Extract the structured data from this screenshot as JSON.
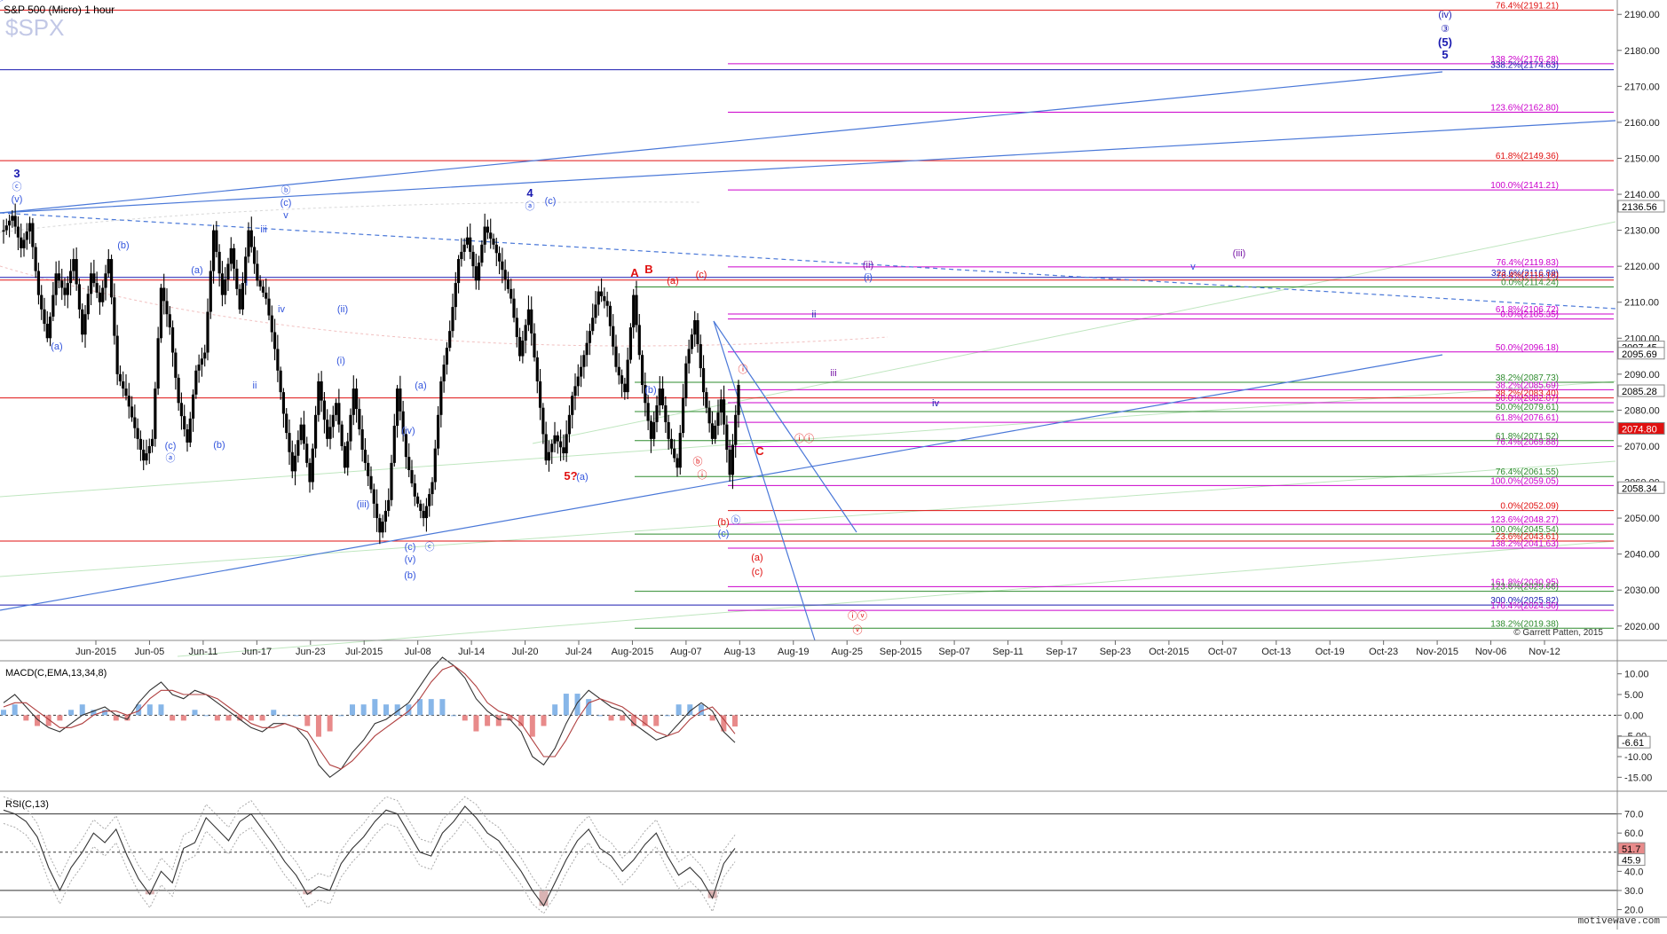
{
  "header": {
    "title": "S&P 500 (Micro)   1 hour",
    "symbol": "$SPX",
    "watermark": "motivewave.com",
    "copyright": "© Garrett Patten, 2015"
  },
  "colors": {
    "candle": "#000000",
    "blue_line": "#4a78d8",
    "red_level": "#e01010",
    "green_level": "#2e8b2e",
    "magenta_level": "#cc00cc",
    "navy_level": "#1a1ab0",
    "macd_pos": "#87b6e8",
    "macd_neg": "#e88a8a"
  },
  "chart_data": [
    {
      "type": "candlestick",
      "title": "S&P 500 (Micro)   1 hour",
      "x_ticks": [
        "Jun-2015",
        "Jun-05",
        "Jun-11",
        "Jun-17",
        "Jun-23",
        "Jul-2015",
        "Jul-08",
        "Jul-14",
        "Jul-20",
        "Jul-24",
        "Aug-2015",
        "Aug-07",
        "Aug-13",
        "Aug-19",
        "Aug-25",
        "Sep-2015",
        "Sep-07",
        "Sep-11",
        "Sep-17",
        "Sep-23",
        "Oct-2015",
        "Oct-07",
        "Oct-13",
        "Oct-19",
        "Oct-23",
        "Nov-2015",
        "Nov-06",
        "Nov-12"
      ],
      "y_ticks": [
        2020,
        2030,
        2040,
        2050,
        2060,
        2070,
        2080,
        2090,
        2100,
        2110,
        2120,
        2130,
        2140,
        2150,
        2160,
        2170,
        2180,
        2190
      ],
      "ylim": [
        2016,
        2194
      ],
      "price_anchors": [
        2130,
        2134,
        2125,
        2132,
        2112,
        2100,
        2118,
        2112,
        2122,
        2101,
        2118,
        2110,
        2122,
        2090,
        2084,
        2075,
        2066,
        2072,
        2114,
        2103,
        2082,
        2071,
        2091,
        2096,
        2130,
        2112,
        2125,
        2108,
        2130,
        2116,
        2111,
        2097,
        2079,
        2063,
        2076,
        2060,
        2088,
        2072,
        2082,
        2064,
        2086,
        2069,
        2058,
        2046,
        2055,
        2086,
        2067,
        2056,
        2050,
        2060,
        2088,
        2102,
        2122,
        2128,
        2116,
        2131,
        2126,
        2119,
        2111,
        2095,
        2108,
        2088,
        2066,
        2073,
        2068,
        2084,
        2092,
        2102,
        2113,
        2109,
        2092,
        2085,
        2112,
        2087,
        2072,
        2086,
        2072,
        2064,
        2093,
        2105,
        2085,
        2072,
        2083,
        2062,
        2087
      ],
      "last_price_labels": [
        "2097.45",
        "2095.69",
        "2085.28",
        "2074.80",
        "2058.34",
        "2136.56"
      ],
      "levels": [
        {
          "label": "76.4%(2191.21)",
          "value": 2191.21,
          "color": "red"
        },
        {
          "label": "138.2%(2176.28)",
          "value": 2176.28,
          "color": "magenta"
        },
        {
          "label": "338.2%(2174.63)",
          "value": 2174.63,
          "color": "navy"
        },
        {
          "label": "123.6%(2162.80)",
          "value": 2162.8,
          "color": "magenta"
        },
        {
          "label": "61.8%(2149.36)",
          "value": 2149.36,
          "color": "red"
        },
        {
          "label": "100.0%(2141.21)",
          "value": 2141.21,
          "color": "magenta"
        },
        {
          "label": "76.4%(2119.83)",
          "value": 2119.83,
          "color": "magenta"
        },
        {
          "label": "323.6%(2116.89)",
          "value": 2116.89,
          "color": "navy"
        },
        {
          "label": "76.4%(2116.16)",
          "value": 2116.16,
          "color": "red"
        },
        {
          "label": "0.0%(2114.24)",
          "value": 2114.24,
          "color": "green"
        },
        {
          "label": "61.8%(2106.72)",
          "value": 2106.72,
          "color": "magenta"
        },
        {
          "label": "0.0%(2105.35)",
          "value": 2105.35,
          "color": "magenta"
        },
        {
          "label": "50.0%(2096.18)",
          "value": 2096.18,
          "color": "magenta"
        },
        {
          "label": "38.2%(2087.73)",
          "value": 2087.73,
          "color": "green"
        },
        {
          "label": "38.2%(2085.69)",
          "value": 2085.69,
          "color": "magenta"
        },
        {
          "label": "38.2%(2083.40)",
          "value": 2083.4,
          "color": "red"
        },
        {
          "label": "50.0%(2082.07)",
          "value": 2082.07,
          "color": "magenta"
        },
        {
          "label": "50.0%(2079.61)",
          "value": 2079.61,
          "color": "green"
        },
        {
          "label": "61.8%(2076.61)",
          "value": 2076.61,
          "color": "magenta"
        },
        {
          "label": "61.8%(2071.52)",
          "value": 2071.52,
          "color": "green"
        },
        {
          "label": "76.4%(2069.88)",
          "value": 2069.88,
          "color": "magenta"
        },
        {
          "label": "76.4%(2061.55)",
          "value": 2061.55,
          "color": "green"
        },
        {
          "label": "100.0%(2059.05)",
          "value": 2059.05,
          "color": "magenta"
        },
        {
          "label": "0.0%(2052.09)",
          "value": 2052.09,
          "color": "red"
        },
        {
          "label": "123.6%(2048.27)",
          "value": 2048.27,
          "color": "magenta"
        },
        {
          "label": "100.0%(2045.54)",
          "value": 2045.54,
          "color": "green"
        },
        {
          "label": "23.6%(2043.61)",
          "value": 2043.61,
          "color": "red"
        },
        {
          "label": "138.2%(2041.63)",
          "value": 2041.63,
          "color": "magenta"
        },
        {
          "label": "161.8%(2030.95)",
          "value": 2030.95,
          "color": "magenta"
        },
        {
          "label": "123.6%(2029.66)",
          "value": 2029.66,
          "color": "green"
        },
        {
          "label": "300.0%(2025.82)",
          "value": 2025.82,
          "color": "navy"
        },
        {
          "label": "176.4%(2024.36)",
          "value": 2024.36,
          "color": "magenta"
        },
        {
          "label": "138.2%(2019.38)",
          "value": 2019.38,
          "color": "green"
        }
      ],
      "wave_labels": [
        {
          "text": "3",
          "color": "navy",
          "bold": true
        },
        {
          "text": "ⓒ",
          "color": "blue"
        },
        {
          "text": "(v)",
          "color": "blue"
        },
        {
          "text": "(a)",
          "color": "blue"
        },
        {
          "text": "(b)",
          "color": "blue"
        },
        {
          "text": "(c)",
          "color": "blue"
        },
        {
          "text": "ⓐ",
          "color": "blue"
        },
        {
          "text": "(a)",
          "color": "blue"
        },
        {
          "text": "(b)",
          "color": "blue"
        },
        {
          "text": "iii",
          "color": "blue"
        },
        {
          "text": "i",
          "color": "blue"
        },
        {
          "text": "ii",
          "color": "blue"
        },
        {
          "text": "ⓑ",
          "color": "blue"
        },
        {
          "text": "(c)",
          "color": "blue"
        },
        {
          "text": "v",
          "color": "blue"
        },
        {
          "text": "iv",
          "color": "blue"
        },
        {
          "text": "(ii)",
          "color": "blue"
        },
        {
          "text": "(i)",
          "color": "blue"
        },
        {
          "text": "(iii)",
          "color": "blue"
        },
        {
          "text": "(a)",
          "color": "blue"
        },
        {
          "text": "(iv)",
          "color": "blue"
        },
        {
          "text": "(c)",
          "color": "blue"
        },
        {
          "text": "(v)",
          "color": "blue"
        },
        {
          "text": "ⓒ",
          "color": "blue"
        },
        {
          "text": "(b)",
          "color": "blue"
        },
        {
          "text": "4",
          "color": "navy",
          "bold": true
        },
        {
          "text": "ⓐ",
          "color": "blue"
        },
        {
          "text": "(c)",
          "color": "blue"
        },
        {
          "text": "5?",
          "color": "red",
          "bold": true
        },
        {
          "text": "(a)",
          "color": "blue"
        },
        {
          "text": "A",
          "color": "red",
          "bold": true
        },
        {
          "text": "B",
          "color": "red",
          "bold": true
        },
        {
          "text": "(b)",
          "color": "blue"
        },
        {
          "text": "(a)",
          "color": "red"
        },
        {
          "text": "ⓑ",
          "color": "red"
        },
        {
          "text": "ⓘ",
          "color": "red"
        },
        {
          "text": "(c)",
          "color": "red"
        },
        {
          "text": "ⓘ",
          "color": "red"
        },
        {
          "text": "(b)",
          "color": "red"
        },
        {
          "text": "(c)",
          "color": "blue"
        },
        {
          "text": "ⓑ",
          "color": "blue"
        },
        {
          "text": "(a)",
          "color": "red"
        },
        {
          "text": "(c)",
          "color": "red"
        },
        {
          "text": "ⓘⓘ",
          "color": "red"
        },
        {
          "text": "ⓘⓥ",
          "color": "red"
        },
        {
          "text": "ⓥ",
          "color": "red"
        },
        {
          "text": "C",
          "color": "red",
          "bold": true
        },
        {
          "text": "ii",
          "color": "navy"
        },
        {
          "text": "iii",
          "color": "purple"
        },
        {
          "text": "iv",
          "color": "navy"
        },
        {
          "text": "(ii)",
          "color": "purple"
        },
        {
          "text": "(i)",
          "color": "blue"
        },
        {
          "text": "v",
          "color": "blue"
        },
        {
          "text": "(iii)",
          "color": "purple"
        },
        {
          "text": "(iv)",
          "color": "navy"
        },
        {
          "text": "③",
          "color": "navy"
        },
        {
          "text": "(5)",
          "color": "navy",
          "bold": true
        },
        {
          "text": "5",
          "color": "navy",
          "bold": true
        },
        {
          "text": "ⓒ",
          "color": "blue"
        }
      ]
    },
    {
      "type": "line",
      "title": "MACD(C,EMA,13,34,8)",
      "y_ticks": [
        10.0,
        5.0,
        0.0,
        -5.0,
        -10.0,
        -15.0
      ],
      "ylim": [
        -17.5,
        12.5
      ],
      "last_value_label": "-6.61",
      "macd": [
        3,
        5,
        2,
        -1,
        -3,
        -4,
        -2,
        0,
        1,
        2,
        0,
        -1,
        3,
        6,
        8,
        5,
        4,
        6,
        5,
        3,
        1,
        -1,
        -3,
        -4,
        -2,
        -2,
        -3,
        -6,
        -12,
        -15,
        -13,
        -9,
        -6,
        -2,
        -1,
        1,
        3,
        7,
        11,
        14,
        12,
        9,
        4,
        1,
        -1,
        -1,
        -4,
        -10,
        -12,
        -8,
        -2,
        3,
        6,
        4,
        2,
        1,
        -2,
        -4,
        -6,
        -5,
        -2,
        1,
        3,
        1,
        -4,
        -6.6
      ],
      "signal": [
        2,
        3,
        3,
        1,
        -1,
        -3,
        -3,
        -2,
        0,
        1,
        1,
        0,
        1,
        4,
        6,
        6,
        5,
        5,
        5,
        4,
        2,
        0,
        -2,
        -3,
        -3,
        -2,
        -3,
        -4,
        -8,
        -12,
        -13,
        -11,
        -8,
        -5,
        -3,
        -1,
        1,
        4,
        8,
        11,
        12,
        10,
        7,
        3,
        1,
        0,
        -2,
        -6,
        -10,
        -10,
        -6,
        -1,
        3,
        4,
        3,
        2,
        0,
        -2,
        -4,
        -5,
        -4,
        -1,
        1,
        2,
        -1,
        -4.5
      ]
    },
    {
      "type": "line",
      "title": "RSI(C,13)",
      "y_ticks": [
        70.0,
        60.0,
        50.0,
        40.0,
        30.0,
        20.0
      ],
      "ylim": [
        17,
        80
      ],
      "hlines": [
        70,
        50,
        30
      ],
      "last_value_labels": [
        "51.7",
        "45.9"
      ],
      "rsi": [
        72,
        70,
        66,
        58,
        42,
        30,
        42,
        50,
        60,
        55,
        62,
        48,
        36,
        28,
        40,
        34,
        52,
        55,
        68,
        62,
        56,
        66,
        70,
        62,
        54,
        45,
        38,
        28,
        32,
        30,
        44,
        52,
        58,
        66,
        72,
        70,
        60,
        50,
        48,
        60,
        66,
        74,
        68,
        60,
        56,
        48,
        40,
        30,
        22,
        34,
        46,
        56,
        62,
        52,
        48,
        40,
        46,
        54,
        60,
        48,
        38,
        42,
        36,
        26,
        44,
        52
      ]
    }
  ]
}
